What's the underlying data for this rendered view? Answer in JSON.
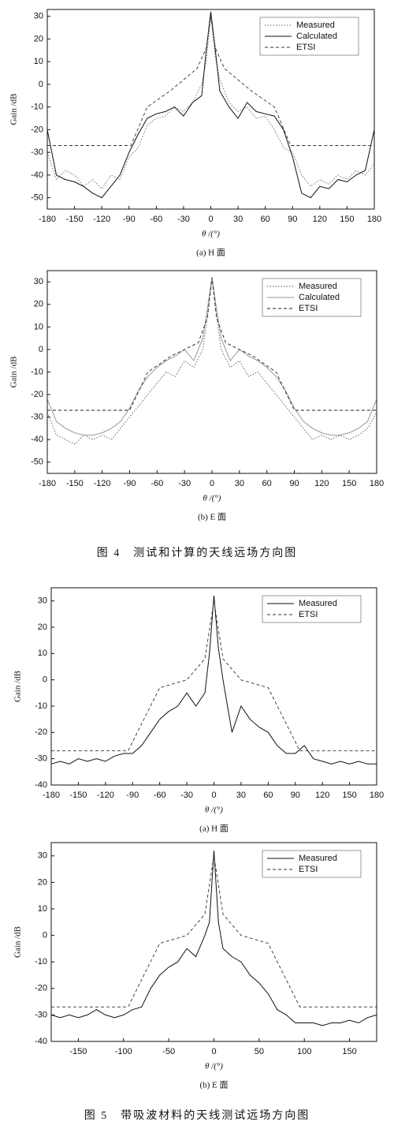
{
  "chart_data": [
    {
      "type": "line",
      "ylabel": "Gain /dB",
      "xlabel": "θ /(°)",
      "caption": "(a) H 面",
      "xlim": [
        -180,
        180
      ],
      "ylim": [
        -55,
        33
      ],
      "xticks": [
        -180,
        -150,
        -120,
        -90,
        -60,
        -30,
        0,
        30,
        60,
        90,
        120,
        150,
        180
      ],
      "yticks": [
        -50,
        -40,
        -30,
        -20,
        -10,
        0,
        10,
        20,
        30
      ],
      "legend": "upper right",
      "series": [
        {
          "name": "Measured",
          "color": "#666666",
          "dash": "dotted",
          "x": [
            -180,
            -170,
            -160,
            -150,
            -140,
            -130,
            -120,
            -110,
            -100,
            -90,
            -80,
            -70,
            -60,
            -50,
            -40,
            -30,
            -20,
            -10,
            -5,
            0,
            5,
            10,
            20,
            30,
            40,
            50,
            60,
            70,
            80,
            90,
            100,
            110,
            120,
            130,
            140,
            150,
            160,
            170,
            180
          ],
          "values": [
            -30,
            -42,
            -38,
            -40,
            -45,
            -42,
            -46,
            -40,
            -42,
            -32,
            -28,
            -18,
            -15,
            -14,
            -10,
            -12,
            -8,
            0,
            10,
            30,
            12,
            2,
            -8,
            -12,
            -10,
            -15,
            -14,
            -20,
            -28,
            -30,
            -40,
            -45,
            -42,
            -44,
            -40,
            -42,
            -38,
            -40,
            -35
          ]
        },
        {
          "name": "Calculated",
          "color": "#111111",
          "dash": "solid",
          "x": [
            -180,
            -170,
            -160,
            -150,
            -140,
            -130,
            -120,
            -110,
            -100,
            -90,
            -80,
            -70,
            -60,
            -50,
            -40,
            -30,
            -20,
            -10,
            -5,
            0,
            5,
            10,
            20,
            30,
            40,
            50,
            60,
            70,
            80,
            90,
            100,
            110,
            120,
            130,
            140,
            150,
            160,
            170,
            180
          ],
          "values": [
            -20,
            -40,
            -42,
            -43,
            -45,
            -48,
            -50,
            -45,
            -40,
            -30,
            -22,
            -15,
            -13,
            -12,
            -10,
            -14,
            -8,
            -5,
            15,
            32,
            15,
            -3,
            -10,
            -15,
            -8,
            -12,
            -13,
            -14,
            -20,
            -32,
            -48,
            -50,
            -45,
            -46,
            -42,
            -43,
            -40,
            -38,
            -20
          ]
        },
        {
          "name": "ETSI",
          "color": "#333333",
          "dash": "dashed",
          "x": [
            -180,
            -88,
            -70,
            -45,
            -15,
            -5,
            0,
            5,
            15,
            45,
            70,
            88,
            180
          ],
          "values": [
            -27,
            -27,
            -10,
            -3,
            7,
            16,
            30,
            16,
            7,
            -3,
            -10,
            -27,
            -27
          ]
        }
      ]
    },
    {
      "type": "line",
      "ylabel": "Gain /dB",
      "xlabel": "θ /(°)",
      "caption": "(b) E 面",
      "xlim": [
        -180,
        180
      ],
      "ylim": [
        -55,
        35
      ],
      "xticks": [
        -180,
        -150,
        -120,
        -90,
        -60,
        -30,
        0,
        30,
        60,
        90,
        120,
        150,
        180
      ],
      "yticks": [
        -50,
        -40,
        -30,
        -20,
        -10,
        0,
        10,
        20,
        30
      ],
      "legend": "upper right",
      "series": [
        {
          "name": "Measured",
          "color": "#555555",
          "dash": "dotted",
          "x": [
            -180,
            -170,
            -160,
            -150,
            -140,
            -130,
            -120,
            -110,
            -100,
            -90,
            -80,
            -70,
            -60,
            -50,
            -40,
            -30,
            -20,
            -10,
            -5,
            0,
            5,
            10,
            20,
            30,
            40,
            50,
            60,
            70,
            80,
            90,
            100,
            110,
            120,
            130,
            140,
            150,
            160,
            170,
            180
          ],
          "values": [
            -28,
            -38,
            -40,
            -42,
            -38,
            -40,
            -38,
            -40,
            -35,
            -30,
            -25,
            -20,
            -15,
            -10,
            -12,
            -5,
            -8,
            0,
            15,
            31,
            15,
            0,
            -8,
            -5,
            -12,
            -10,
            -15,
            -20,
            -25,
            -30,
            -35,
            -40,
            -38,
            -40,
            -38,
            -40,
            -38,
            -35,
            -28
          ]
        },
        {
          "name": "Calculated",
          "color": "#999999",
          "dash": "solid",
          "x": [
            -180,
            -170,
            -160,
            -150,
            -140,
            -130,
            -120,
            -110,
            -100,
            -90,
            -80,
            -70,
            -60,
            -50,
            -40,
            -30,
            -20,
            -10,
            -5,
            0,
            5,
            10,
            20,
            30,
            40,
            50,
            60,
            70,
            80,
            90,
            100,
            110,
            120,
            130,
            140,
            150,
            160,
            170,
            180
          ],
          "values": [
            -22,
            -32,
            -35,
            -37,
            -38,
            -38,
            -37,
            -35,
            -32,
            -26,
            -18,
            -12,
            -8,
            -5,
            -3,
            0,
            -5,
            5,
            18,
            32,
            18,
            5,
            -5,
            0,
            -3,
            -5,
            -8,
            -12,
            -18,
            -26,
            -32,
            -35,
            -37,
            -38,
            -38,
            -37,
            -35,
            -32,
            -22
          ]
        },
        {
          "name": "ETSI",
          "color": "#222222",
          "dash": "dashed",
          "x": [
            -180,
            -90,
            -70,
            -45,
            -15,
            -5,
            0,
            5,
            15,
            45,
            70,
            90,
            180
          ],
          "values": [
            -27,
            -27,
            -10,
            -3,
            3,
            14,
            32,
            14,
            3,
            -3,
            -10,
            -27,
            -27
          ]
        }
      ]
    },
    {
      "type": "line",
      "ylabel": "Gain /dB",
      "xlabel": "θ /(°)",
      "caption": "(a) H 面",
      "xlim": [
        -180,
        180
      ],
      "ylim": [
        -40,
        35
      ],
      "xticks": [
        -180,
        -150,
        -120,
        -90,
        -60,
        -30,
        0,
        30,
        60,
        90,
        120,
        150,
        180
      ],
      "yticks": [
        -40,
        -30,
        -20,
        -10,
        0,
        10,
        20,
        30
      ],
      "legend": "upper right",
      "series": [
        {
          "name": "Measured",
          "color": "#111111",
          "dash": "solid",
          "x": [
            -180,
            -170,
            -160,
            -150,
            -140,
            -130,
            -120,
            -110,
            -100,
            -90,
            -80,
            -70,
            -60,
            -50,
            -40,
            -30,
            -20,
            -10,
            -5,
            0,
            5,
            10,
            20,
            30,
            40,
            50,
            60,
            70,
            80,
            90,
            100,
            110,
            120,
            130,
            140,
            150,
            160,
            170,
            180
          ],
          "values": [
            -32,
            -31,
            -32,
            -30,
            -31,
            -30,
            -31,
            -29,
            -28,
            -28,
            -25,
            -20,
            -15,
            -12,
            -10,
            -5,
            -10,
            -5,
            10,
            32,
            12,
            0,
            -20,
            -10,
            -15,
            -18,
            -20,
            -25,
            -28,
            -28,
            -25,
            -30,
            -31,
            -32,
            -31,
            -32,
            -31,
            -32,
            -32
          ]
        },
        {
          "name": "ETSI",
          "color": "#333333",
          "dash": "dashed",
          "x": [
            -180,
            -95,
            -60,
            -30,
            -10,
            0,
            10,
            30,
            60,
            95,
            180
          ],
          "values": [
            -27,
            -27,
            -3,
            0,
            8,
            30,
            8,
            0,
            -3,
            -27,
            -27
          ]
        }
      ]
    },
    {
      "type": "line",
      "ylabel": "Gain /dB",
      "xlabel": "θ /(°)",
      "caption": "(b) E 面",
      "xlim": [
        -180,
        180
      ],
      "ylim": [
        -40,
        35
      ],
      "xticks": [
        -150,
        -100,
        -50,
        0,
        50,
        100,
        150
      ],
      "yticks": [
        -40,
        -30,
        -20,
        -10,
        0,
        10,
        20,
        30
      ],
      "legend": "upper right",
      "series": [
        {
          "name": "Measured",
          "color": "#111111",
          "dash": "solid",
          "x": [
            -180,
            -170,
            -160,
            -150,
            -140,
            -130,
            -120,
            -110,
            -100,
            -90,
            -80,
            -70,
            -60,
            -50,
            -40,
            -30,
            -20,
            -10,
            -5,
            0,
            5,
            10,
            20,
            30,
            40,
            50,
            60,
            70,
            80,
            90,
            100,
            110,
            120,
            130,
            140,
            150,
            160,
            170,
            180
          ],
          "values": [
            -30,
            -31,
            -30,
            -31,
            -30,
            -28,
            -30,
            -31,
            -30,
            -28,
            -27,
            -20,
            -15,
            -12,
            -10,
            -5,
            -8,
            0,
            5,
            32,
            5,
            -5,
            -8,
            -10,
            -15,
            -18,
            -22,
            -28,
            -30,
            -33,
            -33,
            -33,
            -34,
            -33,
            -33,
            -32,
            -33,
            -31,
            -30
          ]
        },
        {
          "name": "ETSI",
          "color": "#333333",
          "dash": "dashed",
          "x": [
            -180,
            -95,
            -60,
            -30,
            -10,
            0,
            10,
            30,
            60,
            95,
            180
          ],
          "values": [
            -27,
            -27,
            -3,
            0,
            8,
            30,
            8,
            0,
            -3,
            -27,
            -27
          ]
        }
      ]
    }
  ],
  "figure_captions": [
    "图 4　测试和计算的天线远场方向图",
    "图 5　带吸波材料的天线测试远场方向图"
  ]
}
